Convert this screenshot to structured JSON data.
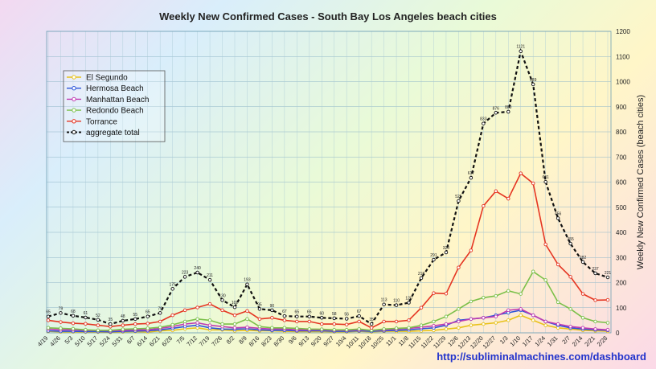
{
  "chart_data": {
    "type": "line",
    "title": "Weekly New Confirmed Cases - South Bay Los Angeles beach cities",
    "xlabel": "",
    "ylabel": "Weekly New Confirmed Cases (beach cities)",
    "ylim": [
      0,
      1200
    ],
    "yticks": [
      0,
      100,
      200,
      300,
      400,
      500,
      600,
      700,
      800,
      900,
      1000,
      1100,
      1200
    ],
    "source_url": "http://subliminalmachines.com/dashboard",
    "categories": [
      "4/19",
      "4/26",
      "5/3",
      "5/10",
      "5/17",
      "5/24",
      "5/31",
      "6/7",
      "6/14",
      "6/21",
      "6/28",
      "7/5",
      "7/12",
      "7/19",
      "7/26",
      "8/2",
      "8/9",
      "8/16",
      "8/23",
      "8/30",
      "9/6",
      "9/13",
      "9/20",
      "9/27",
      "10/4",
      "10/11",
      "10/18",
      "10/25",
      "11/1",
      "11/8",
      "11/15",
      "11/22",
      "11/29",
      "12/6",
      "12/13",
      "12/20",
      "12/27",
      "1/3",
      "1/10",
      "1/17",
      "1/24",
      "1/31",
      "2/7",
      "2/14",
      "2/21",
      "2/28"
    ],
    "series": [
      {
        "name": "El Segundo",
        "color": "#e8c21a",
        "values": [
          6,
          4,
          4,
          3,
          3,
          2,
          4,
          5,
          3,
          8,
          10,
          16,
          20,
          12,
          12,
          8,
          10,
          8,
          8,
          6,
          5,
          5,
          5,
          4,
          4,
          6,
          4,
          6,
          6,
          6,
          8,
          10,
          15,
          20,
          30,
          35,
          40,
          50,
          70,
          50,
          30,
          20,
          15,
          10,
          8,
          6
        ]
      },
      {
        "name": "Hermosa Beach",
        "color": "#2b54d8",
        "values": [
          8,
          6,
          6,
          5,
          5,
          4,
          6,
          7,
          8,
          12,
          18,
          25,
          30,
          20,
          15,
          14,
          16,
          12,
          10,
          10,
          8,
          8,
          8,
          6,
          6,
          8,
          6,
          8,
          10,
          12,
          16,
          20,
          30,
          50,
          55,
          60,
          70,
          80,
          90,
          70,
          45,
          30,
          20,
          15,
          12,
          10
        ]
      },
      {
        "name": "Manhattan Beach",
        "color": "#c03ab2",
        "values": [
          15,
          12,
          12,
          10,
          9,
          8,
          10,
          12,
          12,
          18,
          25,
          35,
          40,
          30,
          25,
          20,
          22,
          18,
          15,
          15,
          12,
          12,
          12,
          10,
          10,
          12,
          10,
          12,
          15,
          18,
          22,
          28,
          35,
          45,
          55,
          60,
          65,
          90,
          95,
          70,
          45,
          35,
          25,
          20,
          15,
          12
        ]
      },
      {
        "name": "Redondo Beach",
        "color": "#7bc04a",
        "values": [
          20,
          18,
          16,
          12,
          10,
          10,
          14,
          16,
          18,
          22,
          32,
          45,
          55,
          50,
          35,
          35,
          55,
          25,
          20,
          20,
          18,
          15,
          14,
          12,
          12,
          15,
          10,
          15,
          18,
          20,
          30,
          45,
          65,
          95,
          125,
          140,
          147,
          167,
          155,
          244,
          210,
          122,
          95,
          60,
          45,
          40
        ]
      },
      {
        "name": "Torrance",
        "color": "#e53522",
        "values": [
          50,
          43,
          38,
          36,
          30,
          25,
          30,
          35,
          37,
          45,
          70,
          90,
          101,
          115,
          90,
          70,
          87,
          55,
          60,
          50,
          45,
          45,
          35,
          35,
          33,
          45,
          20,
          45,
          45,
          50,
          100,
          158,
          156,
          260,
          328,
          505,
          564,
          534,
          635,
          595,
          352,
          272,
          223,
          155,
          130,
          131
        ]
      },
      {
        "name": "aggregate total",
        "color": "#111111",
        "values": [
          65,
          79,
          68,
          61,
          52,
          35,
          48,
          55,
          65,
          79,
          175,
          223,
          240,
          211,
          130,
          102,
          193,
          95,
          90,
          67,
          65,
          65,
          60,
          58,
          56,
          67,
          35,
          113,
          110,
          120,
          218,
          291,
          320,
          525,
          617,
          833,
          876,
          880,
          1121,
          989,
          601,
          456,
          355,
          282,
          237,
          221
        ]
      }
    ],
    "data_labels": [
      "65",
      "79",
      "68",
      "61",
      "52",
      "35",
      "48",
      "55",
      "65",
      "79",
      "175",
      "223",
      "240",
      "211",
      "130",
      "102",
      "193",
      "95",
      "90",
      "67",
      "65",
      "65",
      "60",
      "58",
      "56",
      "67",
      "35",
      "113",
      "110",
      "120",
      "218",
      "291",
      "320",
      "525",
      "617",
      "833",
      "876",
      "880",
      "1121",
      "989",
      "601",
      "456",
      "355",
      "282",
      "237",
      "221"
    ],
    "legend": {
      "placement": "top-left"
    }
  }
}
